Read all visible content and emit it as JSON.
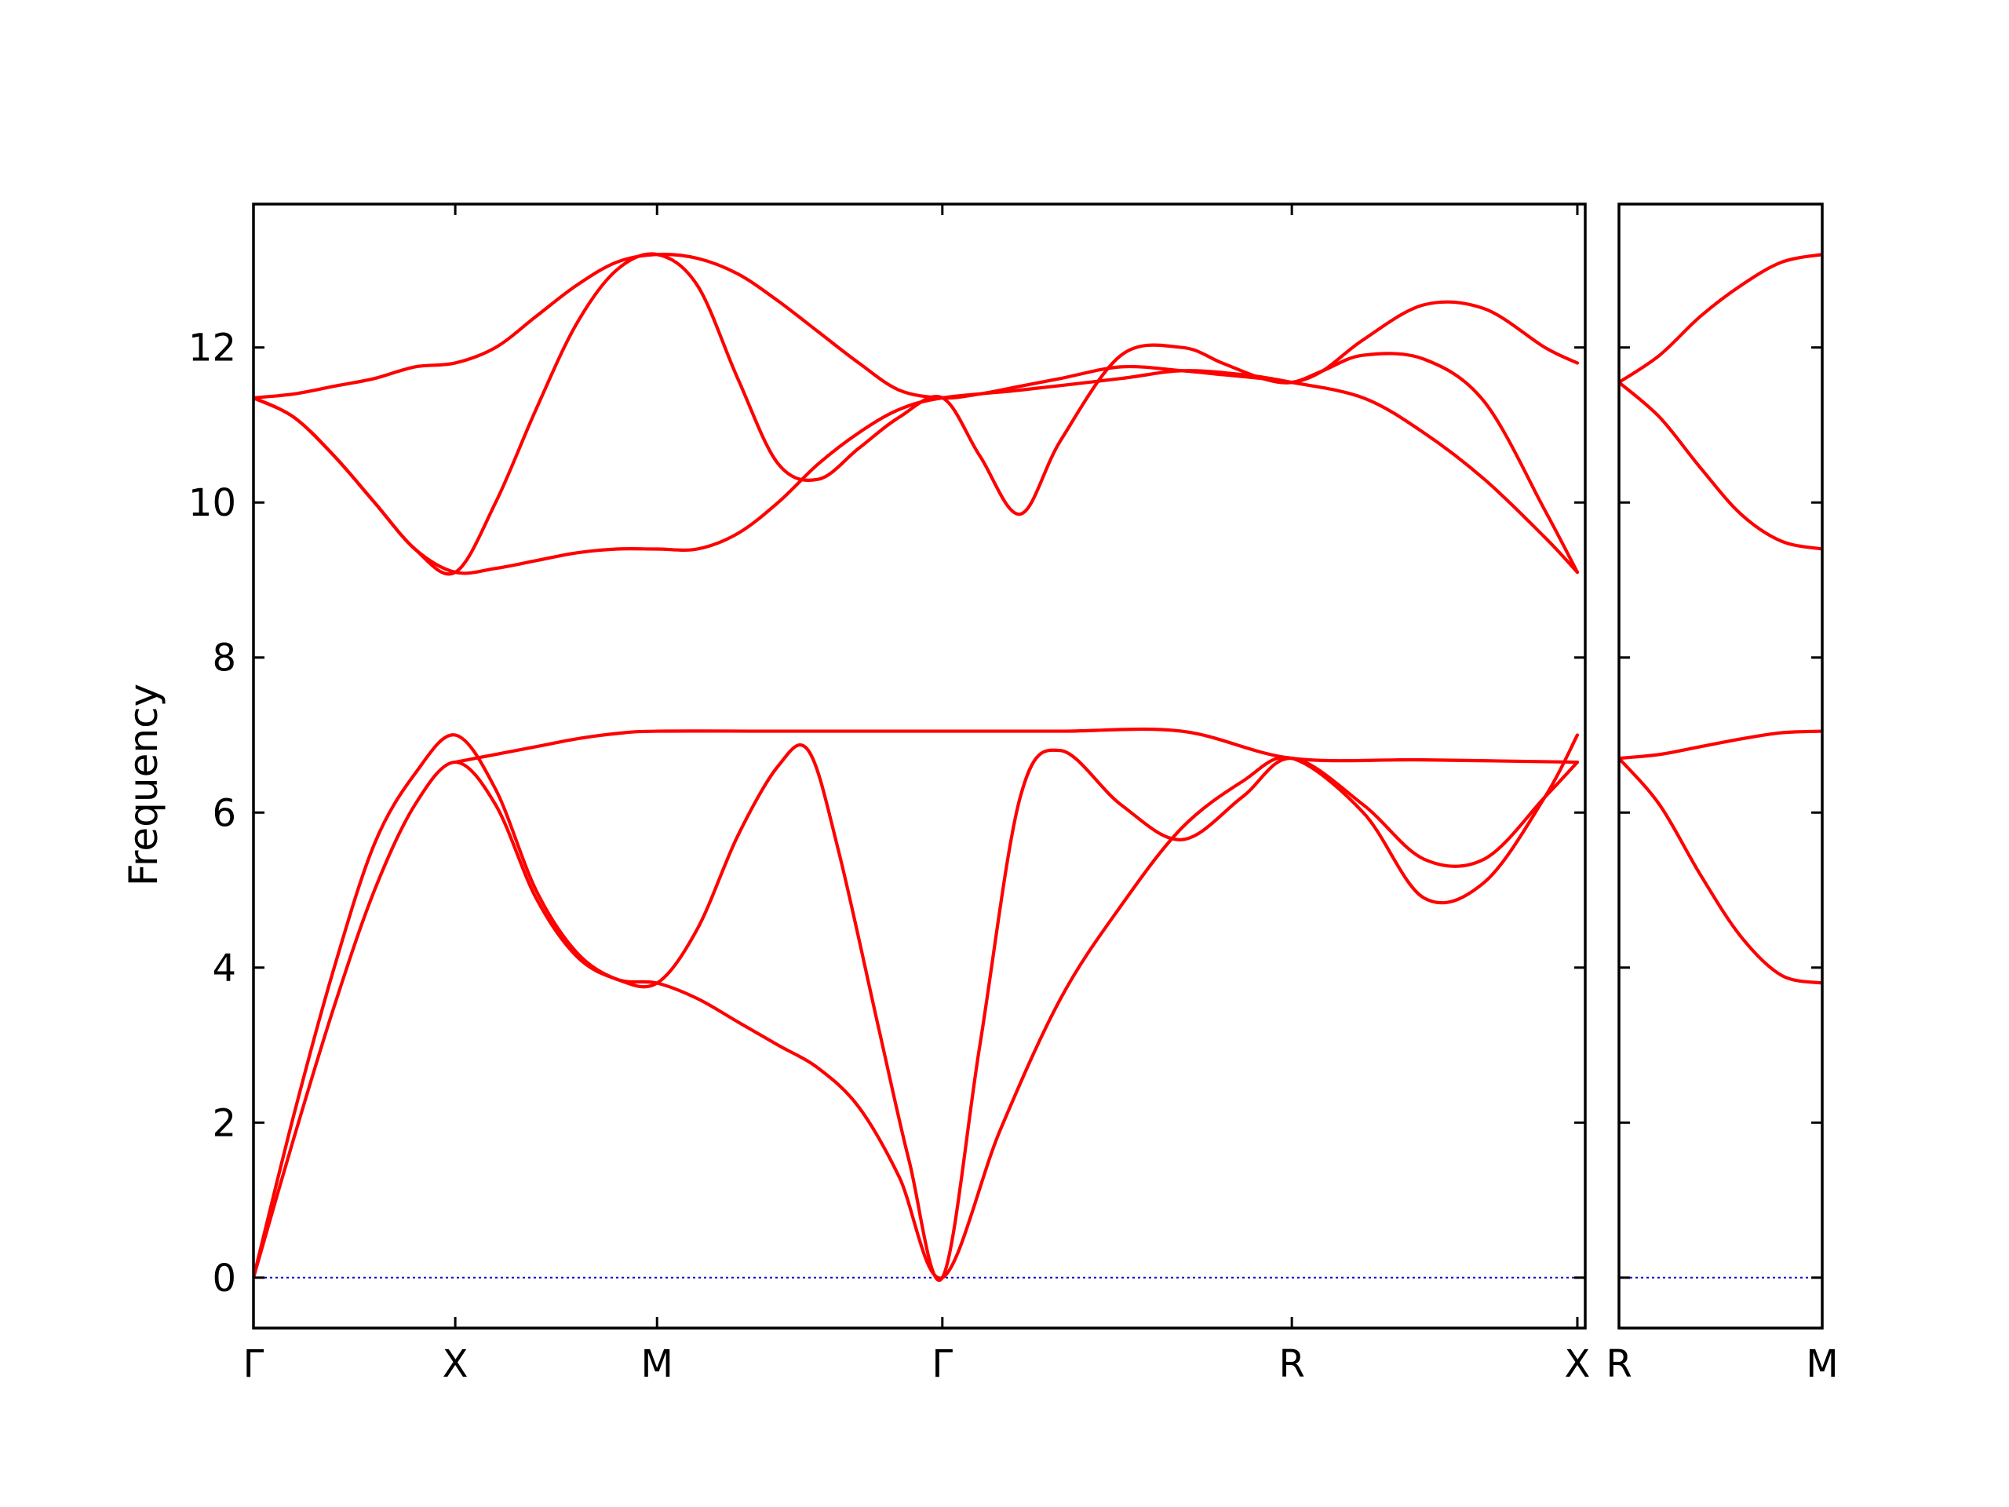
{
  "chart_data": {
    "type": "line",
    "title": "",
    "ylabel": "Frequency",
    "ylim": [
      -0.65,
      13.85
    ],
    "yticks": [
      "0",
      "2",
      "4",
      "6",
      "8",
      "10",
      "12"
    ],
    "ytick_values": [
      0,
      2,
      4,
      6,
      8,
      10,
      12
    ],
    "grid": false,
    "colors": {
      "bands": "#ff0000",
      "zero_line": "#0000cc",
      "frame": "#000000"
    },
    "panels": [
      {
        "name": "main",
        "x_range": [
          0,
          6.6
        ],
        "xticks": [
          {
            "label": "Γ",
            "x": 0
          },
          {
            "label": "X",
            "x": 1.0
          },
          {
            "label": "M",
            "x": 2.0
          },
          {
            "label": "Γ",
            "x": 3.414
          },
          {
            "label": "R",
            "x": 5.146
          },
          {
            "label": "X",
            "x": 6.561
          }
        ],
        "series": [
          {
            "x": [
              0,
              0.2,
              0.4,
              0.6,
              0.8,
              1.0,
              1.2,
              1.4,
              1.6,
              1.8,
              2.0,
              2.2,
              2.4,
              2.6,
              2.8,
              3.0,
              3.2,
              3.414,
              3.7,
              4.0,
              4.3,
              4.6,
              4.9,
              5.146,
              5.5,
              5.8,
              6.1,
              6.4,
              6.561
            ],
            "values": [
              0,
              2.1,
              4.0,
              5.6,
              6.5,
              7.0,
              6.3,
              5.0,
              4.2,
              3.85,
              3.8,
              3.6,
              3.3,
              3.0,
              2.7,
              2.2,
              1.3,
              0,
              1.9,
              3.6,
              4.8,
              5.8,
              6.4,
              6.7,
              6.0,
              4.9,
              5.1,
              6.2,
              7.0
            ]
          },
          {
            "x": [
              0,
              0.2,
              0.4,
              0.6,
              0.8,
              1.0,
              1.2,
              1.4,
              1.6,
              1.8,
              2.0,
              2.2,
              2.4,
              2.6,
              2.75,
              2.9,
              3.1,
              3.25,
              3.414,
              3.6,
              3.8,
              4.0,
              4.3,
              4.6,
              4.9,
              5.146,
              5.5,
              5.8,
              6.1,
              6.4,
              6.561
            ],
            "values": [
              0,
              1.8,
              3.5,
              5.0,
              6.1,
              6.65,
              6.1,
              4.9,
              4.15,
              3.85,
              3.8,
              4.5,
              5.7,
              6.6,
              6.8,
              5.5,
              3.2,
              1.5,
              0,
              3.0,
              6.2,
              6.8,
              6.1,
              5.65,
              6.2,
              6.7,
              6.1,
              5.4,
              5.4,
              6.2,
              6.65
            ]
          },
          {
            "x": [
              1.0,
              1.2,
              1.4,
              1.6,
              1.8,
              2.0,
              2.6,
              3.414,
              4.0,
              4.6,
              5.146,
              5.8,
              6.561
            ],
            "values": [
              6.65,
              6.75,
              6.85,
              6.95,
              7.02,
              7.05,
              7.05,
              7.05,
              7.05,
              7.05,
              6.7,
              6.68,
              6.65
            ]
          },
          {
            "x": [
              0,
              0.2,
              0.4,
              0.6,
              0.8,
              1.0,
              1.2,
              1.4,
              1.6,
              1.8,
              2.0,
              2.2,
              2.4,
              2.6,
              2.8,
              3.0,
              3.2,
              3.414,
              3.6,
              3.8,
              4.0,
              4.3,
              4.6,
              4.8,
              5.0,
              5.146,
              5.3,
              5.5,
              5.8,
              6.1,
              6.4,
              6.561
            ],
            "values": [
              11.35,
              11.4,
              11.5,
              11.6,
              11.75,
              11.8,
              12.0,
              12.4,
              12.8,
              13.1,
              13.2,
              13.15,
              12.95,
              12.6,
              12.2,
              11.8,
              11.45,
              11.35,
              11.4,
              11.5,
              11.6,
              11.75,
              11.7,
              11.65,
              11.6,
              11.55,
              11.7,
              12.1,
              12.55,
              12.5,
              12.0,
              11.8
            ]
          },
          {
            "x": [
              0,
              0.2,
              0.4,
              0.6,
              0.8,
              1.0,
              1.2,
              1.4,
              1.6,
              1.8,
              2.0,
              2.2,
              2.4,
              2.6,
              2.8,
              3.0,
              3.2,
              3.414,
              3.6,
              3.8,
              4.0,
              4.3,
              4.6,
              4.8,
              5.0,
              5.146,
              5.3,
              5.5,
              5.8,
              6.1,
              6.4,
              6.561
            ],
            "values": [
              11.35,
              11.1,
              10.6,
              10.0,
              9.4,
              9.1,
              10.0,
              11.2,
              12.3,
              13.0,
              13.2,
              12.8,
              11.6,
              10.5,
              10.3,
              10.7,
              11.1,
              11.35,
              10.6,
              9.85,
              10.8,
              11.9,
              12.0,
              11.8,
              11.6,
              11.55,
              11.7,
              11.9,
              11.85,
              11.3,
              9.9,
              9.1
            ]
          },
          {
            "x": [
              0,
              0.2,
              0.4,
              0.6,
              0.8,
              1.0,
              1.2,
              1.4,
              1.6,
              1.8,
              2.0,
              2.2,
              2.4,
              2.6,
              2.8,
              3.0,
              3.2,
              3.414,
              3.8,
              4.3,
              4.6,
              4.9,
              5.146,
              5.5,
              5.8,
              6.1,
              6.4,
              6.561
            ],
            "values": [
              11.35,
              11.1,
              10.6,
              10.0,
              9.4,
              9.1,
              9.15,
              9.25,
              9.35,
              9.4,
              9.4,
              9.4,
              9.6,
              10.0,
              10.5,
              10.9,
              11.2,
              11.35,
              11.45,
              11.6,
              11.7,
              11.65,
              11.55,
              11.35,
              10.9,
              10.3,
              9.55,
              9.1
            ]
          }
        ]
      },
      {
        "name": "right",
        "x_range": [
          0,
          1.0
        ],
        "xticks": [
          {
            "label": "R",
            "x": 0
          },
          {
            "label": "M",
            "x": 1.0
          }
        ],
        "series": [
          {
            "x": [
              0,
              0.2,
              0.4,
              0.6,
              0.8,
              1.0
            ],
            "values": [
              11.55,
              11.9,
              12.4,
              12.8,
              13.1,
              13.2
            ]
          },
          {
            "x": [
              0,
              0.2,
              0.4,
              0.6,
              0.8,
              1.0
            ],
            "values": [
              11.55,
              11.1,
              10.45,
              9.85,
              9.5,
              9.4
            ]
          },
          {
            "x": [
              0,
              0.2,
              0.4,
              0.6,
              0.8,
              1.0
            ],
            "values": [
              6.7,
              6.75,
              6.85,
              6.95,
              7.03,
              7.05
            ]
          },
          {
            "x": [
              0,
              0.2,
              0.4,
              0.6,
              0.8,
              1.0
            ],
            "values": [
              6.7,
              6.1,
              5.2,
              4.4,
              3.9,
              3.8
            ]
          }
        ]
      }
    ]
  }
}
